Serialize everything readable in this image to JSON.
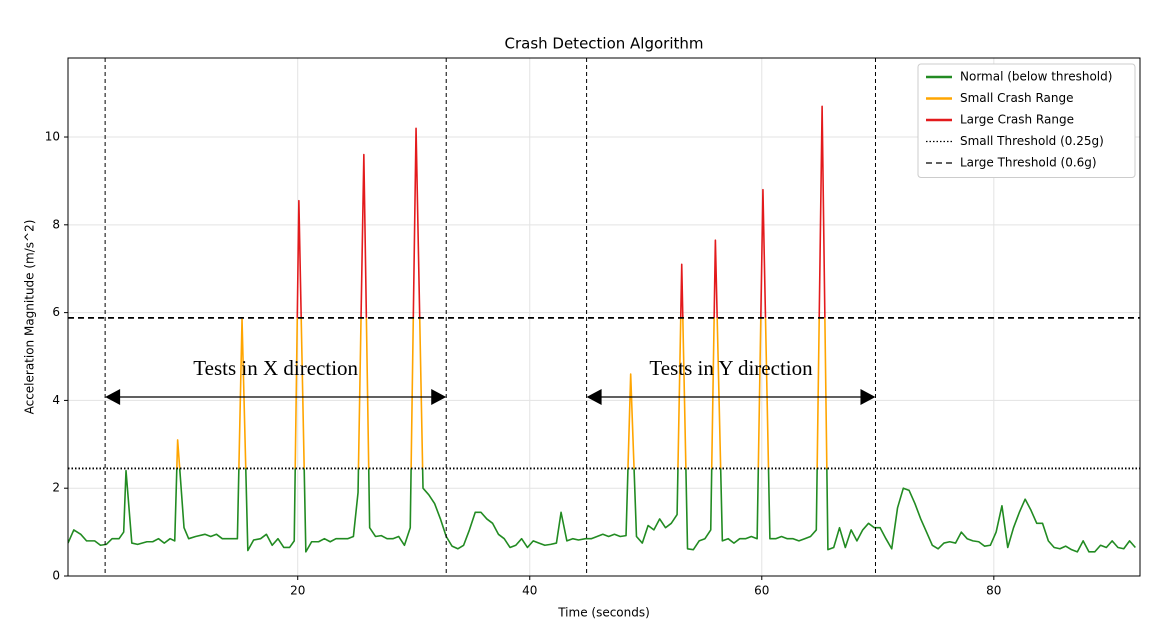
{
  "chart_data": {
    "type": "line",
    "title": "Crash Detection Algorithm",
    "xlabel": "Time (seconds)",
    "ylabel": "Acceleration Magnitude (m/s^2)",
    "x": [
      0.2,
      0.7,
      1.3,
      1.8,
      2.5,
      3.0,
      3.5,
      4.0,
      4.6,
      5.0,
      5.2,
      5.7,
      6.2,
      7.0,
      7.5,
      8.0,
      8.5,
      9.0,
      9.4,
      9.65,
      10.2,
      10.6,
      11.2,
      12.0,
      12.5,
      13.0,
      13.5,
      14.2,
      14.8,
      15.2,
      15.7,
      16.2,
      16.8,
      17.3,
      17.8,
      18.3,
      18.8,
      19.3,
      19.7,
      20.1,
      20.7,
      21.2,
      21.8,
      22.3,
      22.8,
      23.3,
      23.8,
      24.3,
      24.8,
      25.2,
      25.7,
      26.2,
      26.7,
      27.2,
      27.7,
      28.2,
      28.7,
      29.2,
      29.7,
      30.2,
      30.8,
      31.3,
      31.8,
      32.3,
      32.8,
      33.3,
      33.8,
      34.3,
      34.8,
      35.3,
      35.8,
      36.3,
      36.8,
      37.3,
      37.8,
      38.3,
      38.8,
      39.3,
      39.8,
      40.3,
      40.8,
      41.3,
      41.8,
      42.3,
      42.7,
      43.2,
      43.7,
      44.2,
      44.8,
      45.3,
      45.8,
      46.3,
      46.8,
      47.3,
      47.8,
      48.3,
      48.7,
      49.2,
      49.7,
      50.2,
      50.7,
      51.2,
      51.7,
      52.2,
      52.7,
      53.1,
      53.6,
      54.1,
      54.6,
      55.1,
      55.6,
      56.0,
      56.6,
      57.1,
      57.6,
      58.1,
      58.6,
      59.1,
      59.6,
      60.1,
      60.7,
      61.2,
      61.7,
      62.2,
      62.7,
      63.2,
      63.7,
      64.2,
      64.7,
      65.2,
      65.7,
      66.2,
      66.7,
      67.2,
      67.7,
      68.2,
      68.7,
      69.2,
      69.7,
      70.2,
      70.7,
      71.2,
      71.7,
      72.2,
      72.7,
      73.2,
      73.7,
      74.2,
      74.7,
      75.2,
      75.7,
      76.2,
      76.7,
      77.2,
      77.7,
      78.2,
      78.7,
      79.2,
      79.7,
      80.2,
      80.7,
      81.2,
      81.7,
      82.2,
      82.7,
      83.2,
      83.7,
      84.2,
      84.7,
      85.2,
      85.7,
      86.2,
      86.7,
      87.2,
      87.7,
      88.2,
      88.7,
      89.2,
      89.7,
      90.2,
      90.7,
      91.2,
      91.7,
      92.2
    ],
    "values": [
      0.75,
      1.05,
      0.95,
      0.8,
      0.8,
      0.7,
      0.72,
      0.85,
      0.85,
      1.0,
      2.4,
      0.75,
      0.72,
      0.78,
      0.78,
      0.85,
      0.75,
      0.85,
      0.8,
      3.1,
      1.1,
      0.85,
      0.9,
      0.95,
      0.9,
      0.95,
      0.85,
      0.85,
      0.85,
      5.85,
      0.58,
      0.82,
      0.85,
      0.95,
      0.7,
      0.85,
      0.65,
      0.65,
      0.8,
      8.55,
      0.55,
      0.78,
      0.78,
      0.85,
      0.78,
      0.85,
      0.85,
      0.85,
      0.9,
      1.9,
      9.6,
      1.1,
      0.9,
      0.92,
      0.85,
      0.85,
      0.9,
      0.7,
      1.1,
      10.2,
      2.0,
      1.85,
      1.65,
      1.3,
      0.9,
      0.68,
      0.62,
      0.7,
      1.05,
      1.45,
      1.45,
      1.3,
      1.2,
      0.95,
      0.85,
      0.65,
      0.7,
      0.85,
      0.65,
      0.8,
      0.75,
      0.7,
      0.72,
      0.75,
      1.45,
      0.8,
      0.85,
      0.82,
      0.85,
      0.85,
      0.9,
      0.95,
      0.9,
      0.95,
      0.9,
      0.92,
      4.6,
      0.9,
      0.75,
      1.15,
      1.05,
      1.3,
      1.1,
      1.2,
      1.4,
      7.1,
      0.62,
      0.6,
      0.8,
      0.85,
      1.05,
      7.65,
      0.8,
      0.85,
      0.75,
      0.85,
      0.85,
      0.9,
      0.85,
      8.8,
      0.85,
      0.85,
      0.9,
      0.85,
      0.85,
      0.8,
      0.85,
      0.9,
      1.05,
      10.7,
      0.6,
      0.65,
      1.1,
      0.65,
      1.05,
      0.8,
      1.05,
      1.2,
      1.1,
      1.1,
      0.85,
      0.62,
      1.55,
      2.0,
      1.95,
      1.65,
      1.3,
      1.0,
      0.7,
      0.62,
      0.75,
      0.78,
      0.75,
      1.0,
      0.85,
      0.8,
      0.78,
      0.68,
      0.7,
      1.0,
      1.6,
      0.65,
      1.1,
      1.45,
      1.75,
      1.5,
      1.2,
      1.2,
      0.8,
      0.65,
      0.62,
      0.68,
      0.6,
      0.55,
      0.8,
      0.55,
      0.55,
      0.7,
      0.65,
      0.8,
      0.65,
      0.62,
      0.8,
      0.65
    ],
    "xlim": [
      0.2,
      92.6
    ],
    "ylim": [
      0,
      11.8
    ],
    "xticks": [
      20,
      40,
      60,
      80
    ],
    "yticks": [
      0,
      2,
      4,
      6,
      8,
      10
    ],
    "grid": true,
    "legend": "upper right",
    "bands": [
      {
        "name": "Normal (below threshold)",
        "color": "#228b22"
      },
      {
        "name": "Small Crash Range",
        "color": "#ffa500"
      },
      {
        "name": "Large Crash Range",
        "color": "#e31a1c"
      }
    ],
    "thresholds": [
      {
        "name": "Small Threshold (0.25g)",
        "value": 2.45,
        "style": "dotted"
      },
      {
        "name": "Large Threshold (0.6g)",
        "value": 5.88,
        "style": "dashed"
      }
    ],
    "markers_x": [
      3.4,
      32.8,
      44.9,
      69.8
    ],
    "annotations": [
      {
        "text": "Tests in X direction"
      },
      {
        "text": "Tests in Y direction"
      }
    ]
  }
}
